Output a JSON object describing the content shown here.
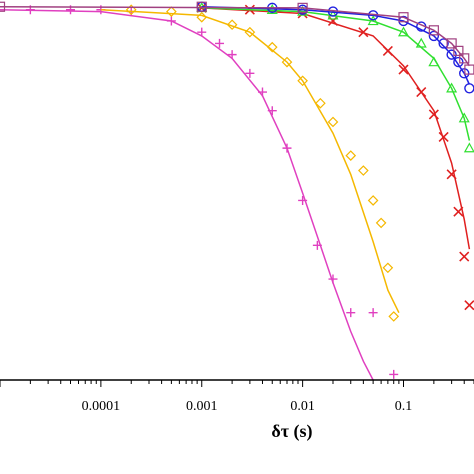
{
  "chart_data": {
    "type": "scatter",
    "x_scale": "log",
    "xlim": [
      1e-05,
      0.5
    ],
    "ylim": [
      0,
      1
    ],
    "xlabel": "δτ (s)",
    "ylabel": "",
    "title": "",
    "grid": false,
    "x_ticks": [
      0.0001,
      0.001,
      0.01,
      0.1
    ],
    "x_tick_labels": [
      "0.0001",
      "0.001",
      "0.01",
      "0.1"
    ],
    "series": [
      {
        "color": "#e040c0",
        "marker": "plus",
        "x": [
          2e-05,
          5e-05,
          0.0001,
          0.0002,
          0.0005,
          0.001,
          0.0015,
          0.002,
          0.003,
          0.004,
          0.005,
          0.007,
          0.01,
          0.014,
          0.02,
          0.03,
          0.05,
          0.08
        ],
        "y": [
          0.99,
          0.99,
          0.99,
          0.985,
          0.96,
          0.93,
          0.9,
          0.87,
          0.82,
          0.77,
          0.72,
          0.62,
          0.48,
          0.36,
          0.27,
          0.18,
          0.18,
          0.015
        ],
        "fit_x": [
          1e-05,
          0.0001,
          0.0005,
          0.001,
          0.002,
          0.004,
          0.007,
          0.01,
          0.015,
          0.02,
          0.03,
          0.04,
          0.05
        ],
        "fit_y": [
          0.99,
          0.985,
          0.96,
          0.92,
          0.86,
          0.76,
          0.62,
          0.5,
          0.36,
          0.26,
          0.13,
          0.05,
          0.0
        ]
      },
      {
        "color": "#f5b800",
        "marker": "diamond",
        "x": [
          0.0002,
          0.0005,
          0.001,
          0.002,
          0.003,
          0.005,
          0.007,
          0.01,
          0.015,
          0.02,
          0.03,
          0.04,
          0.05,
          0.06,
          0.07,
          0.08
        ],
        "y": [
          0.99,
          0.985,
          0.97,
          0.95,
          0.93,
          0.89,
          0.85,
          0.8,
          0.74,
          0.69,
          0.6,
          0.56,
          0.48,
          0.42,
          0.3,
          0.17
        ],
        "fit_x": [
          0.0001,
          0.001,
          0.003,
          0.007,
          0.01,
          0.02,
          0.03,
          0.05,
          0.07,
          0.09
        ],
        "fit_y": [
          0.99,
          0.975,
          0.93,
          0.85,
          0.8,
          0.66,
          0.55,
          0.37,
          0.24,
          0.18
        ]
      },
      {
        "color": "#e02020",
        "marker": "x",
        "x": [
          0.001,
          0.003,
          0.01,
          0.02,
          0.04,
          0.07,
          0.1,
          0.15,
          0.2,
          0.25,
          0.3,
          0.35,
          0.4,
          0.45
        ],
        "y": [
          0.995,
          0.99,
          0.98,
          0.96,
          0.93,
          0.88,
          0.83,
          0.77,
          0.71,
          0.65,
          0.55,
          0.45,
          0.33,
          0.2
        ],
        "fit_x": [
          0.001,
          0.01,
          0.05,
          0.1,
          0.2,
          0.3,
          0.4,
          0.45
        ],
        "fit_y": [
          0.995,
          0.98,
          0.92,
          0.84,
          0.72,
          0.58,
          0.43,
          0.35
        ]
      },
      {
        "color": "#30e030",
        "marker": "triangle",
        "x": [
          0.001,
          0.005,
          0.01,
          0.02,
          0.05,
          0.1,
          0.15,
          0.2,
          0.3,
          0.4,
          0.45
        ],
        "y": [
          0.995,
          0.99,
          0.985,
          0.975,
          0.96,
          0.93,
          0.9,
          0.85,
          0.78,
          0.7,
          0.62
        ],
        "fit_x": [
          0.001,
          0.01,
          0.05,
          0.1,
          0.2,
          0.3,
          0.4,
          0.45
        ],
        "fit_y": [
          0.995,
          0.985,
          0.96,
          0.93,
          0.86,
          0.78,
          0.7,
          0.64
        ]
      },
      {
        "color": "#2020e0",
        "marker": "circle",
        "x": [
          0.001,
          0.005,
          0.01,
          0.02,
          0.05,
          0.1,
          0.15,
          0.2,
          0.25,
          0.3,
          0.35,
          0.4,
          0.45
        ],
        "y": [
          0.998,
          0.995,
          0.99,
          0.985,
          0.975,
          0.96,
          0.945,
          0.92,
          0.9,
          0.87,
          0.85,
          0.82,
          0.78
        ],
        "fit_x": [
          0.001,
          0.01,
          0.05,
          0.1,
          0.2,
          0.3,
          0.4,
          0.45
        ],
        "fit_y": [
          0.998,
          0.99,
          0.975,
          0.96,
          0.92,
          0.87,
          0.82,
          0.79
        ]
      },
      {
        "color": "#a04080",
        "marker": "square",
        "x": [
          1e-05,
          0.001,
          0.01,
          0.1,
          0.2,
          0.3,
          0.35,
          0.4,
          0.45
        ],
        "y": [
          0.998,
          0.998,
          0.995,
          0.97,
          0.935,
          0.9,
          0.88,
          0.86,
          0.83
        ],
        "fit_x": [
          1e-05,
          0.01,
          0.1,
          0.2,
          0.3,
          0.4,
          0.45
        ],
        "fit_y": [
          0.998,
          0.995,
          0.97,
          0.935,
          0.9,
          0.86,
          0.84
        ]
      }
    ]
  }
}
